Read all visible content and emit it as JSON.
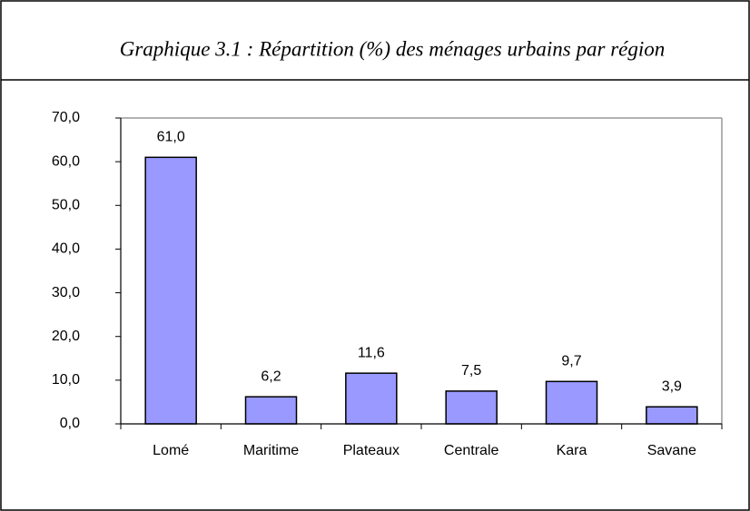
{
  "chart_data": {
    "type": "bar",
    "title": "Graphique 3.1 : Répartition  (%)  des ménages urbains par région",
    "categories": [
      "Lomé",
      "Maritime",
      "Plateaux",
      "Centrale",
      "Kara",
      "Savane"
    ],
    "values": [
      61.0,
      6.2,
      11.6,
      7.5,
      9.7,
      3.9
    ],
    "value_labels": [
      "61,0",
      "6,2",
      "11,6",
      "7,5",
      "9,7",
      "3,9"
    ],
    "color": "#9999ff",
    "ylim": [
      0,
      70
    ],
    "yticks": [
      {
        "value": 0,
        "label": "0,0"
      },
      {
        "value": 10,
        "label": "10,0"
      },
      {
        "value": 20,
        "label": "20,0"
      },
      {
        "value": 30,
        "label": "30,0"
      },
      {
        "value": 40,
        "label": "40,0"
      },
      {
        "value": 50,
        "label": "50,0"
      },
      {
        "value": 60,
        "label": "60,0"
      },
      {
        "value": 70,
        "label": "70,0"
      }
    ],
    "grid": false
  }
}
